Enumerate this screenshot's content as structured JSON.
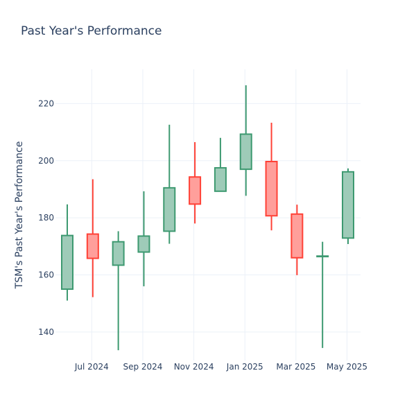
{
  "chart_data": {
    "type": "candlestick",
    "title": "Past Year's Performance",
    "xlabel": "",
    "ylabel": "TSM's Past Year's Performance",
    "ylim": [
      130,
      232
    ],
    "y_ticks": [
      140,
      160,
      180,
      200,
      220
    ],
    "x_ticks": [
      "Jul 2024",
      "Sep 2024",
      "Nov 2024",
      "Jan 2025",
      "Mar 2025",
      "May 2025"
    ],
    "grid": true,
    "legend": "none",
    "colors": {
      "increasing": "#3d9970",
      "increasing_fill": "#9ecbb8",
      "decreasing": "#ff4136",
      "decreasing_fill": "#ff9f9b",
      "text": "#2a3f5f",
      "grid": "#ebf0f8"
    },
    "candles": [
      {
        "month": "2024-06",
        "open": 155,
        "high": 184.7,
        "low": 151,
        "close": 173.8
      },
      {
        "month": "2024-07",
        "open": 174.3,
        "high": 193.5,
        "low": 152.2,
        "close": 165.8
      },
      {
        "month": "2024-08",
        "open": 163.4,
        "high": 175.3,
        "low": 133.6,
        "close": 171.6
      },
      {
        "month": "2024-09",
        "open": 168,
        "high": 189.3,
        "low": 156,
        "close": 173.6
      },
      {
        "month": "2024-10",
        "open": 175.3,
        "high": 212.6,
        "low": 170.9,
        "close": 190.5
      },
      {
        "month": "2024-11",
        "open": 194.3,
        "high": 206.5,
        "low": 178,
        "close": 184.8
      },
      {
        "month": "2024-12",
        "open": 189.3,
        "high": 208,
        "low": 189.2,
        "close": 197.5
      },
      {
        "month": "2025-01",
        "open": 197,
        "high": 226.4,
        "low": 187.7,
        "close": 209.3
      },
      {
        "month": "2025-02",
        "open": 199.7,
        "high": 213.3,
        "low": 175.6,
        "close": 180.7
      },
      {
        "month": "2025-03",
        "open": 181.3,
        "high": 184.6,
        "low": 159.9,
        "close": 166
      },
      {
        "month": "2025-04",
        "open": 166.4,
        "high": 171.6,
        "low": 134.4,
        "close": 166.6
      },
      {
        "month": "2025-05",
        "open": 172.9,
        "high": 197.3,
        "low": 170.8,
        "close": 196.1
      }
    ]
  }
}
